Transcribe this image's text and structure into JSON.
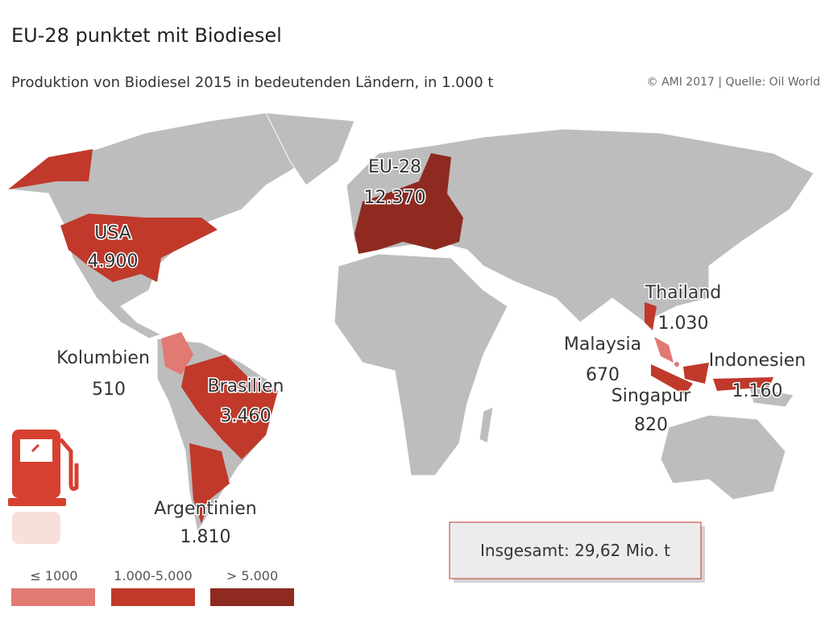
{
  "header": {
    "title": "EU-28 punktet mit Biodiesel",
    "subtitle": "Produktion von Biodiesel 2015 in bedeutenden Ländern, in 1.000 t",
    "source": "© AMI 2017 | Quelle: Oil World"
  },
  "countries": [
    {
      "name": "EU-28",
      "value": "12.370",
      "color": "#8e2a20"
    },
    {
      "name": "USA",
      "value": "4.900",
      "color": "#c0392b"
    },
    {
      "name": "Thailand",
      "value": "1.030",
      "color": "#c0392b"
    },
    {
      "name": "Malaysia",
      "value": "670",
      "color": "#e07a72"
    },
    {
      "name": "Indonesien",
      "value": "1.160",
      "color": "#c0392b"
    },
    {
      "name": "Singapur",
      "value": "820",
      "color": "#e07a72"
    },
    {
      "name": "Kolumbien",
      "value": "510",
      "color": "#e07a72"
    },
    {
      "name": "Brasilien",
      "value": "3.460",
      "color": "#c0392b"
    },
    {
      "name": "Argentinien",
      "value": "1.810",
      "color": "#c0392b"
    }
  ],
  "legend": [
    {
      "label": "≤ 1000",
      "color": "#e07a72"
    },
    {
      "label": "1.000-5.000",
      "color": "#c0392b"
    },
    {
      "label": "> 5.000",
      "color": "#8e2a20"
    }
  ],
  "total": "Insgesamt: 29,62 Mio. t"
}
